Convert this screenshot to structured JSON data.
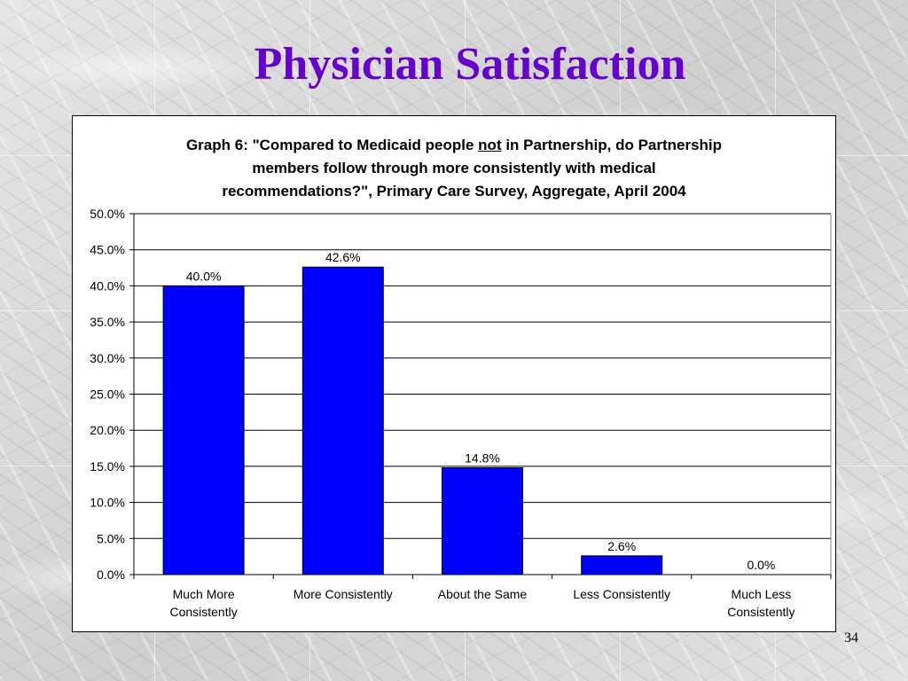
{
  "slide": {
    "title": "Physician Satisfaction",
    "page_number": "34"
  },
  "colors": {
    "title": "#6600cc",
    "bar": "#0000ff"
  },
  "chart_data": {
    "type": "bar",
    "title": {
      "line1_before": "Graph 6: \"Compared to Medicaid people ",
      "line1_underlined": "not",
      "line1_after": " in Partnership, do Partnership",
      "line2": "members follow through more consistently with medical",
      "line3": "recommendations?\", Primary Care Survey, Aggregate, April 2004"
    },
    "categories": [
      [
        "Much More",
        "Consistently"
      ],
      [
        "More Consistently"
      ],
      [
        "About the Same"
      ],
      [
        "Less Consistently"
      ],
      [
        "Much Less",
        "Consistently"
      ]
    ],
    "values": [
      40.0,
      42.6,
      14.8,
      2.6,
      0.0
    ],
    "data_labels": [
      "40.0%",
      "42.6%",
      "14.8%",
      "2.6%",
      "0.0%"
    ],
    "ylim": [
      0,
      50
    ],
    "y_ticks": [
      "0.0%",
      "5.0%",
      "10.0%",
      "15.0%",
      "20.0%",
      "25.0%",
      "30.0%",
      "35.0%",
      "40.0%",
      "45.0%",
      "50.0%"
    ],
    "grid": true,
    "legend": "none",
    "xlabel": "",
    "ylabel": ""
  }
}
